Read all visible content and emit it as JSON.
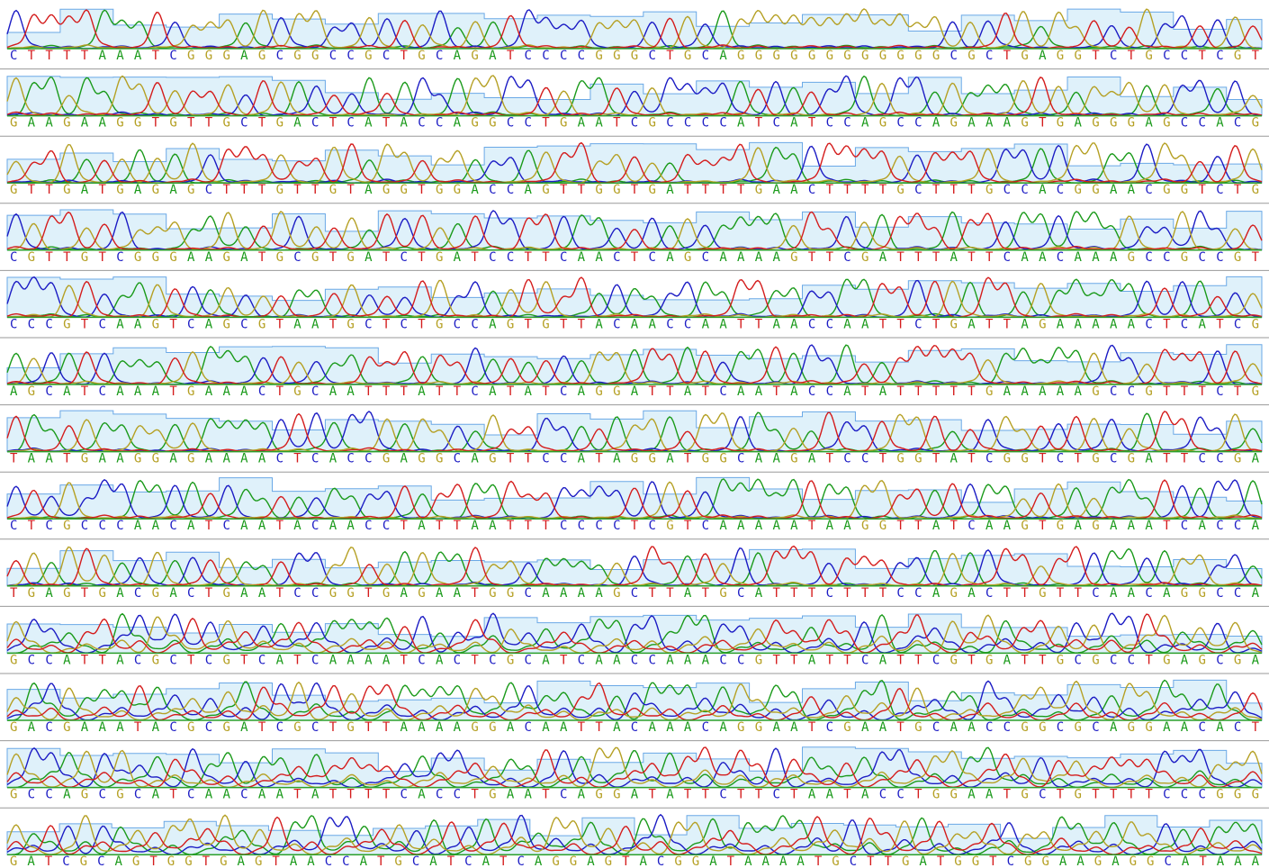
{
  "rows": [
    {
      "bases": "CTTTTAAATCGGGAGCGGCCGCTGCAGATCCCCGGGCTGCAGGGGGGGGGGGGCGCTGAGGTCTGCCTCGT"
    },
    {
      "bases": "GAAGAAGGTGTTGCTGACTCATACCAGGCCTGAATCGCCCCATCATCCAGCCAGAAAGTGAGGGAGCCACG"
    },
    {
      "bases": "GTTGATGAGAGCTTTGTTGTAGGTGGACCAGTTGGTGATTTTGAACTTTTGCTTTGCCACGGAACGGTCTG"
    },
    {
      "bases": "CGTTGTCGGGAAGATGCGTGATCTGATCCTTCAACTCAGCAAAAGTTCGATTTATTCAACAAAGCCGCCGT"
    },
    {
      "bases": "CCCGTCAAGTCAGCGTAATGCTCTGCCAGTGTTACAACCAATTAACCAATTCTGATTAGAAAAACTCATCG"
    },
    {
      "bases": "AGCATCAAATGAAACTGCAATTTATTCATATCAGGATTATCAATACCATATTTTTGAAAAAGCCGTTTCTG"
    },
    {
      "bases": "TAATGAAGGAGAAAACTCACCGAGGCAGTTCCATAGGATGGCAAGATCCTGGTATCGGTCTGCGATTCCGA"
    },
    {
      "bases": "CTCGCCCAACATCAATACAACCTATTAATTTCCCCTCGTCAAAAATAAGGTTATCAAGTGAGAAATCACCA"
    },
    {
      "bases": "TGAGTGACGACTGAATCCGGTGAGAATGGCAAAAGCTTATGCATTTCTTTCCAGACTTGTTCAACAGGCCA"
    },
    {
      "bases": "GCCATTACGCTCGTCATCAAAATCACTCGCATCAACCAAACCGTTATTCATTCGTGATTGCGCCTGAGCGA"
    },
    {
      "bases": "GACGAAATACGCGATCGCTGTTAAAAGGACAATTACAAACAGGAATCGAATGCAACCGGCGCAGGAACACT"
    },
    {
      "bases": "GCCAGCGCATCAACAATATTTTCACCTGAATCAGGATATTCTTCTAATACCTGGAATGCTGTTTTCCCGGG"
    },
    {
      "bases": "GATCGCAGTGGTGAGTAACCATGCATCATCAGGAGTACGGATAAAATGCTTGATGGTCGGAAGAGGCATAAA"
    }
  ]
}
